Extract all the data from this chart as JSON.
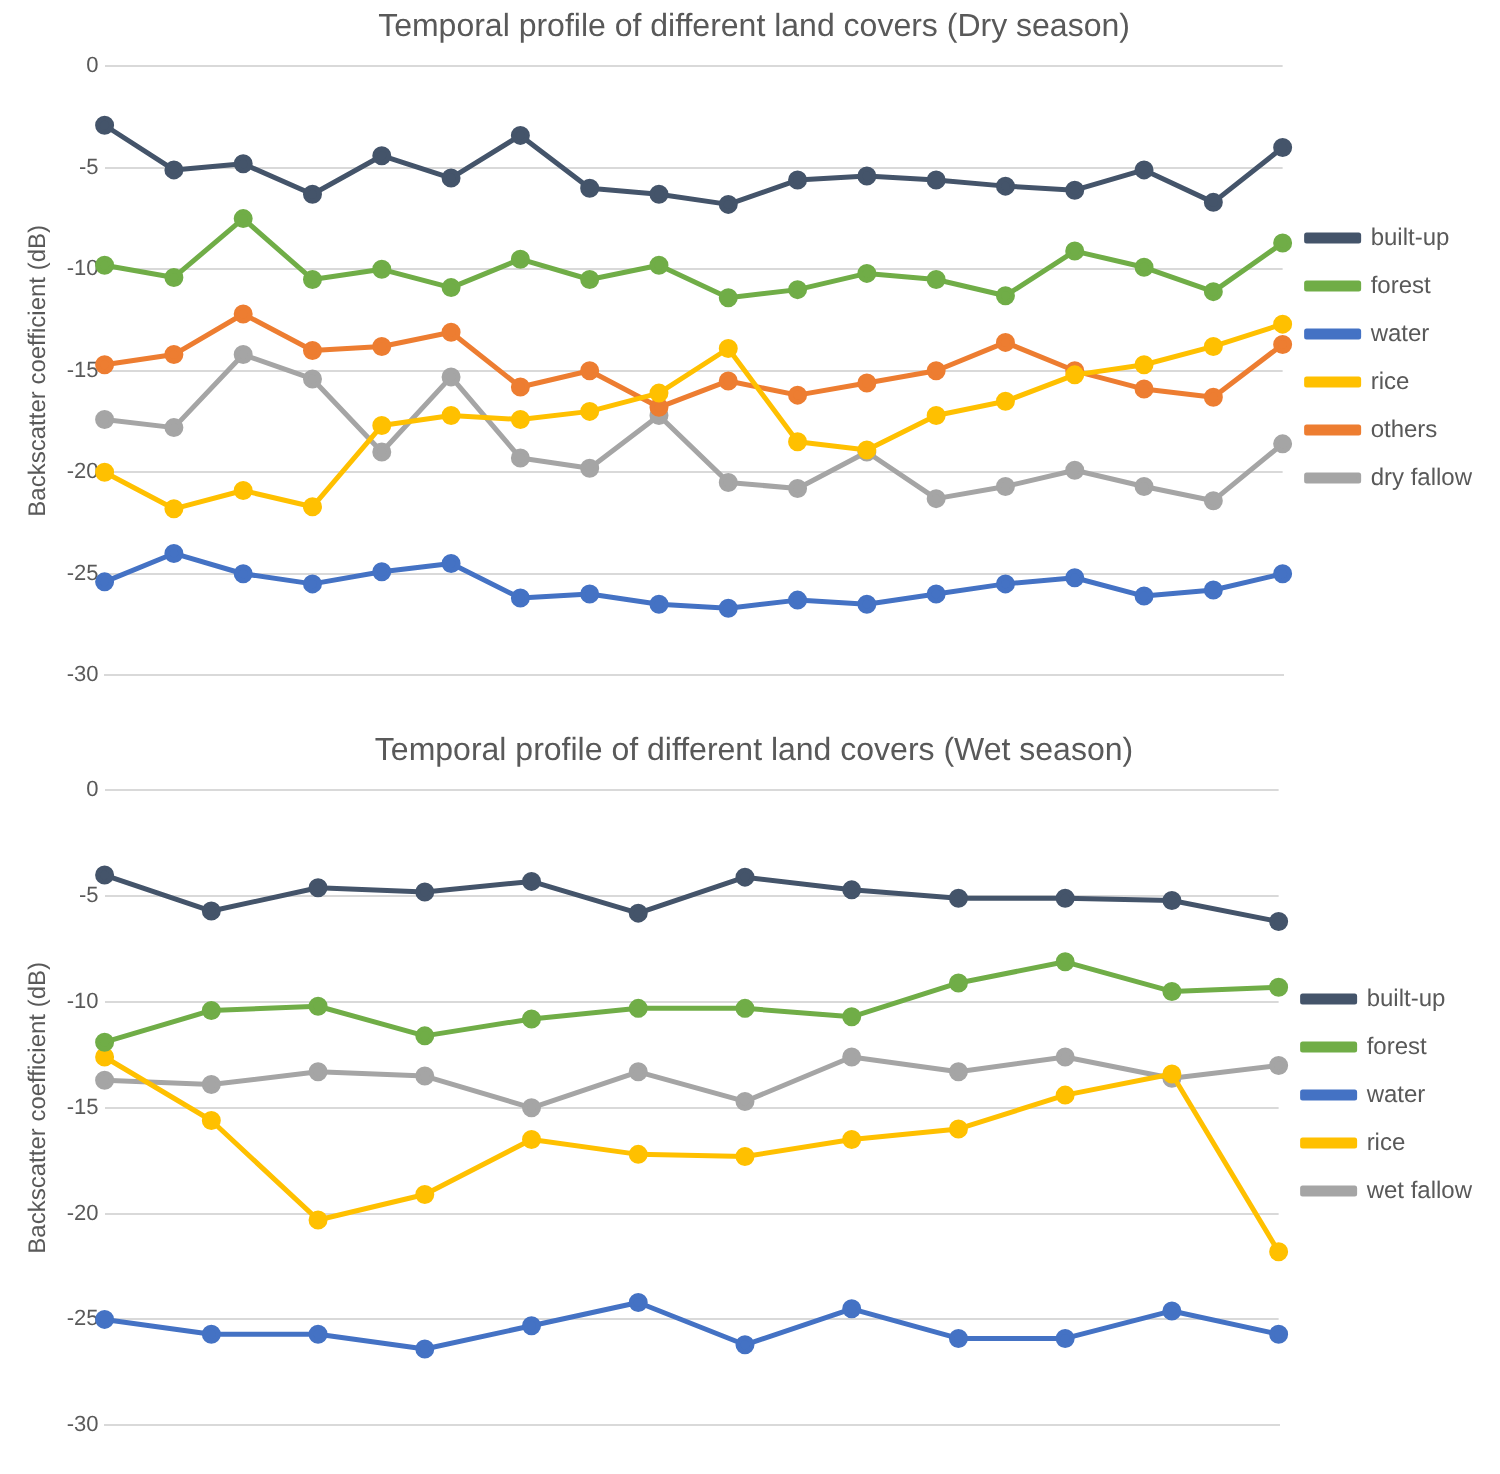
{
  "chart_data": [
    {
      "type": "line",
      "title": "Temporal profile of different land covers (Dry season)",
      "ylabel": "Backscatter coefficient (dB)",
      "categories": [
        null,
        null,
        null,
        null,
        null,
        null,
        null,
        null,
        null,
        null,
        null,
        null,
        null,
        null,
        null,
        null,
        null,
        null
      ],
      "series": [
        {
          "name": "built-up",
          "color": "#44546a",
          "values": [
            -2.9,
            -5.1,
            -4.8,
            -6.3,
            -4.4,
            -5.5,
            -3.4,
            -6.0,
            -6.3,
            -6.8,
            -5.6,
            -5.4,
            -5.6,
            -5.9,
            -6.1,
            -5.1,
            -6.7,
            -4.0
          ]
        },
        {
          "name": "forest",
          "color": "#70ad47",
          "values": [
            -9.8,
            -10.4,
            -7.5,
            -10.5,
            -10.0,
            -10.9,
            -9.5,
            -10.5,
            -9.8,
            -11.4,
            -11.0,
            -10.2,
            -10.5,
            -11.3,
            -9.1,
            -9.9,
            -11.1,
            -8.7
          ]
        },
        {
          "name": "water",
          "color": "#4472c4",
          "values": [
            -25.4,
            -24.0,
            -25.0,
            -25.5,
            -24.9,
            -24.5,
            -26.2,
            -26.0,
            -26.5,
            -26.7,
            -26.3,
            -26.5,
            -26.0,
            -25.5,
            -25.2,
            -26.1,
            -25.8,
            -25.0
          ]
        },
        {
          "name": "rice",
          "color": "#ffc000",
          "values": [
            -20.0,
            -21.8,
            -20.9,
            -21.7,
            -17.7,
            -17.2,
            -17.4,
            -17.0,
            -16.1,
            -13.9,
            -18.5,
            -18.9,
            -17.2,
            -16.5,
            -15.2,
            -14.7,
            -13.8,
            -12.7
          ]
        },
        {
          "name": "others",
          "color": "#ed7d31",
          "values": [
            -14.7,
            -14.2,
            -12.2,
            -14.0,
            -13.8,
            -13.1,
            -15.8,
            -15.0,
            -16.8,
            -15.5,
            -16.2,
            -15.6,
            -15.0,
            -13.6,
            -15.0,
            -15.9,
            -16.3,
            -13.7
          ]
        },
        {
          "name": "dry fallow",
          "color": "#a5a5a5",
          "values": [
            -17.4,
            -17.8,
            -14.2,
            -15.4,
            -19.0,
            -15.3,
            -19.3,
            -19.8,
            -17.2,
            -20.5,
            -20.8,
            -19.0,
            -21.3,
            -20.7,
            -19.9,
            -20.7,
            -21.4,
            -18.6
          ]
        }
      ],
      "ylim": [
        -30,
        0
      ],
      "yticks": [
        -30,
        -25,
        -20,
        -15,
        -10,
        -5,
        0
      ],
      "grid": "y",
      "legend": "right",
      "marker": "circle"
    },
    {
      "type": "line",
      "title": "Temporal profile of different land covers (Wet season)",
      "ylabel": "Backscatter coefficient (dB)",
      "categories": [
        null,
        null,
        null,
        null,
        null,
        null,
        null,
        null,
        null,
        null,
        null,
        null
      ],
      "series": [
        {
          "name": "built-up",
          "color": "#44546a",
          "values": [
            -4.0,
            -5.7,
            -4.6,
            -4.8,
            -4.3,
            -5.8,
            -4.1,
            -4.7,
            -5.1,
            -5.1,
            -5.2,
            -6.2
          ]
        },
        {
          "name": "forest",
          "color": "#70ad47",
          "values": [
            -11.9,
            -10.4,
            -10.2,
            -11.6,
            -10.8,
            -10.3,
            -10.3,
            -10.7,
            -9.1,
            -8.1,
            -9.5,
            -9.3
          ]
        },
        {
          "name": "water",
          "color": "#4472c4",
          "values": [
            -25.0,
            -25.7,
            -25.7,
            -26.4,
            -25.3,
            -24.2,
            -26.2,
            -24.5,
            -25.9,
            -25.9,
            -24.6,
            -25.7
          ]
        },
        {
          "name": "rice",
          "color": "#ffc000",
          "values": [
            -12.6,
            -15.6,
            -20.3,
            -19.1,
            -16.5,
            -17.2,
            -17.3,
            -16.5,
            -16.0,
            -14.4,
            -13.4,
            -21.8
          ]
        },
        {
          "name": "wet fallow",
          "color": "#a5a5a5",
          "values": [
            -13.7,
            -13.9,
            -13.3,
            -13.5,
            -15.0,
            -13.3,
            -14.7,
            -12.6,
            -13.3,
            -12.6,
            -13.6,
            -13.0
          ]
        }
      ],
      "ylim": [
        -30,
        0
      ],
      "yticks": [
        -30,
        -25,
        -20,
        -15,
        -10,
        -5,
        0
      ],
      "grid": "y",
      "legend": "right",
      "marker": "circle"
    }
  ]
}
